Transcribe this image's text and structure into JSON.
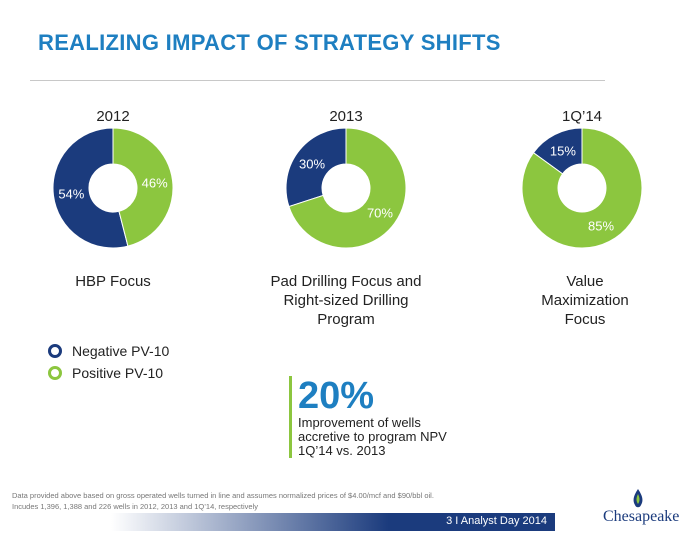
{
  "title": "REALIZING IMPACT OF STRATEGY SHIFTS",
  "colors": {
    "negative": "#1b3b7d",
    "positive": "#8cc63f",
    "accent": "#1e7fc1"
  },
  "chart_data": [
    {
      "type": "pie",
      "title": "2012",
      "categories": [
        "Negative PV-10",
        "Positive PV-10"
      ],
      "values": [
        54,
        46
      ],
      "labels": [
        "54%",
        "46%"
      ],
      "caption": "HBP Focus"
    },
    {
      "type": "pie",
      "title": "2013",
      "categories": [
        "Negative PV-10",
        "Positive PV-10"
      ],
      "values": [
        30,
        70
      ],
      "labels": [
        "30%",
        "70%"
      ],
      "caption": "Pad Drilling Focus and Right-sized Drilling Program"
    },
    {
      "type": "pie",
      "title": "1Q’14",
      "categories": [
        "Negative PV-10",
        "Positive PV-10"
      ],
      "values": [
        15,
        85
      ],
      "labels": [
        "15%",
        "85%"
      ],
      "caption": "Value Maximization Focus"
    }
  ],
  "legend": [
    "Negative PV-10",
    "Positive PV-10"
  ],
  "callout": {
    "value": "20%",
    "text": "Improvement of wells accretive to program NPV 1Q’14 vs. 2013"
  },
  "footnote": {
    "line1": "Data provided above based on gross operated wells turned in line and assumes normalized prices of $4.00/mcf and $90/bbl oil.",
    "line2": "Incudes 1,396, 1,388 and 226 wells in 2012, 2013 and 1Q’14, respectively"
  },
  "footer": {
    "page_info": "3  I  Analyst Day 2014",
    "logo": "Chesapeake"
  }
}
